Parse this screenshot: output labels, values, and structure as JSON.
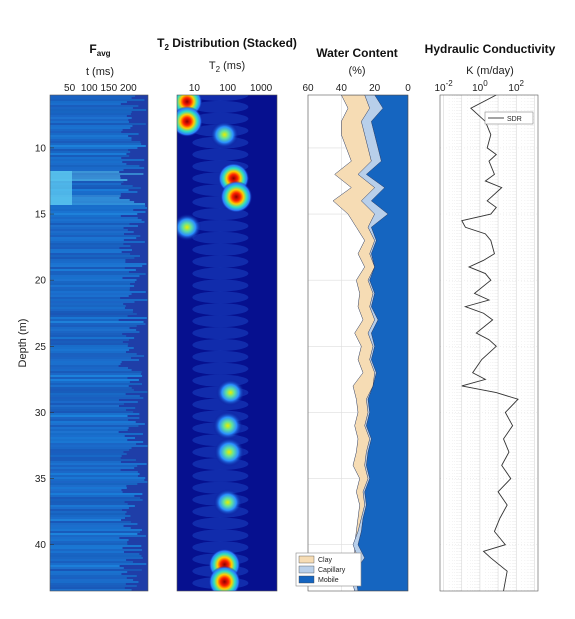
{
  "chart_data": [
    {
      "type": "heatmap",
      "title_main": "F",
      "title_sub": "avg",
      "xlabel": "t (ms)",
      "xticks": [
        "50",
        "100",
        "150",
        "200"
      ],
      "xtick_values": [
        50,
        100,
        150,
        200
      ],
      "xlim": [
        0,
        250
      ],
      "ylabel": "Depth (m)",
      "yticks": [
        "10",
        "15",
        "20",
        "25",
        "30",
        "35",
        "40"
      ],
      "ytick_values": [
        10,
        15,
        20,
        25,
        30,
        35,
        40
      ],
      "ylim": [
        6,
        43.5
      ],
      "colormap": "parula"
    },
    {
      "type": "heatmap",
      "title_pre": "T",
      "title_sub": "2",
      "title_post": " Distribution (Stacked)",
      "xlabel_pre": "T",
      "xlabel_sub": "2",
      "xlabel_post": " (ms)",
      "xticks": [
        "10",
        "100",
        "1000"
      ],
      "xtick_values": [
        10,
        100,
        1000
      ],
      "xscale": "log",
      "xlim": [
        3,
        3000
      ],
      "colormap": "jet",
      "hotspots": [
        {
          "depth": 6.5,
          "t2": 6,
          "level": 0.85
        },
        {
          "depth": 8,
          "t2": 6,
          "level": 0.9
        },
        {
          "depth": 9,
          "t2": 80,
          "level": 0.55
        },
        {
          "depth": 12.3,
          "t2": 150,
          "level": 0.9
        },
        {
          "depth": 13.7,
          "t2": 180,
          "level": 1.0
        },
        {
          "depth": 16,
          "t2": 6,
          "level": 0.6
        },
        {
          "depth": 28.5,
          "t2": 120,
          "level": 0.55
        },
        {
          "depth": 31,
          "t2": 100,
          "level": 0.7
        },
        {
          "depth": 33,
          "t2": 110,
          "level": 0.75
        },
        {
          "depth": 36.8,
          "t2": 100,
          "level": 0.55
        },
        {
          "depth": 41.5,
          "t2": 80,
          "level": 1.0
        },
        {
          "depth": 42.8,
          "t2": 80,
          "level": 1.0
        }
      ]
    },
    {
      "type": "area",
      "title": "Water Content",
      "xlabel": "(%)",
      "xticks": [
        "60",
        "40",
        "20",
        "0"
      ],
      "xtick_values": [
        60,
        40,
        20,
        0
      ],
      "xlim": [
        60,
        0
      ],
      "x_reversed": true,
      "grid": true,
      "legend": "bottom-left",
      "depth": [
        6,
        7,
        8,
        9,
        10,
        11,
        12,
        13,
        14,
        15,
        16,
        17,
        18,
        19,
        20,
        21,
        22,
        23,
        24,
        25,
        26,
        27,
        28,
        29,
        30,
        31,
        32,
        33,
        34,
        35,
        36,
        37,
        38,
        39,
        40,
        41,
        42,
        43.5
      ],
      "series": [
        {
          "name": "Clay",
          "color": "#f6dcb4",
          "values": [
            40,
            36,
            40,
            40,
            37,
            34,
            44,
            34,
            45,
            36,
            31,
            26,
            30,
            26,
            31,
            29,
            30,
            27,
            32,
            28,
            30,
            27,
            33,
            31,
            30,
            32,
            30,
            31,
            33,
            29,
            31,
            29,
            30,
            31,
            32,
            32,
            33,
            32
          ]
        },
        {
          "name": "Capillary",
          "color": "#b8cfea",
          "values": [
            26,
            23,
            28,
            26,
            24,
            22,
            30,
            20,
            28,
            20,
            24,
            20,
            23,
            20,
            24,
            21,
            23,
            20,
            24,
            21,
            23,
            20,
            21,
            25,
            24,
            26,
            23,
            25,
            26,
            24,
            27,
            26,
            28,
            30,
            33,
            30,
            35,
            32
          ]
        },
        {
          "name": "Mobile",
          "color": "#1565c0",
          "values": [
            20,
            15,
            22,
            20,
            18,
            16,
            25,
            14,
            22,
            12,
            22,
            19,
            22,
            20,
            23,
            20,
            22,
            18,
            22,
            20,
            22,
            19,
            21,
            24,
            23,
            25,
            22,
            24,
            25,
            23,
            26,
            25,
            27,
            28,
            30,
            26,
            32,
            30
          ]
        }
      ]
    },
    {
      "type": "line",
      "title": "Hydraulic Conductivity",
      "xlabel": "K (m/day)",
      "xticks_base": [
        "10",
        "10",
        "10"
      ],
      "xticks_exp": [
        "-2",
        "0",
        "2"
      ],
      "xscale": "log",
      "xlim_log10": [
        -2.2,
        3.2
      ],
      "grid": true,
      "legend": "top-right",
      "series": [
        {
          "name": "SDR",
          "depth": [
            6,
            7,
            8,
            9,
            10,
            10.5,
            11,
            12,
            12.5,
            13,
            14,
            14.5,
            15,
            15.5,
            16,
            16.5,
            17,
            18,
            18.5,
            19,
            19.5,
            20,
            21,
            21.5,
            22,
            22.5,
            23,
            24,
            24.5,
            25,
            26,
            27,
            27.5,
            28,
            28.5,
            29,
            30,
            31,
            32,
            33,
            34,
            35,
            36,
            37,
            38,
            39,
            40,
            40.5,
            41,
            42,
            43.5
          ],
          "log10K": [
            0.9,
            -0.5,
            0.3,
            0.6,
            0.4,
            0.9,
            0.5,
            0.8,
            0.3,
            1.2,
            0.4,
            0.9,
            0.6,
            -1.0,
            -0.8,
            0.3,
            0.6,
            0.8,
            0.2,
            -0.6,
            0.3,
            0.6,
            -0.3,
            0.5,
            -0.8,
            0.2,
            0.7,
            -0.2,
            0.5,
            0.9,
            0.1,
            -0.4,
            0.3,
            -1.0,
            0.9,
            2.1,
            1.4,
            1.8,
            1.3,
            1.6,
            1.2,
            1.7,
            1.0,
            1.5,
            1.1,
            0.8,
            1.4,
            0.2,
            0.6,
            1.5,
            1.3
          ]
        }
      ]
    }
  ]
}
